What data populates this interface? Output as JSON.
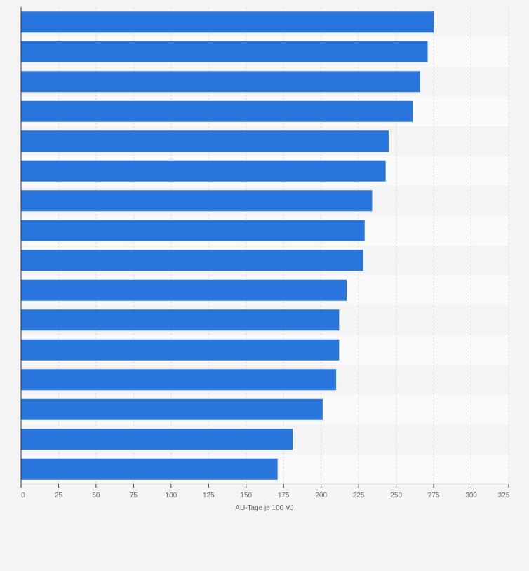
{
  "chart_data": {
    "type": "bar",
    "orientation": "horizontal",
    "title": "",
    "xlabel": "AU-Tage je 100 VJ",
    "ylabel": "",
    "xlim": [
      0,
      325
    ],
    "xticks": [
      0,
      25,
      50,
      75,
      100,
      125,
      150,
      175,
      200,
      225,
      250,
      275,
      300,
      325
    ],
    "categories": [
      "",
      "",
      "",
      "",
      "",
      "",
      "",
      "",
      "",
      "",
      "",
      "",
      "",
      "",
      "",
      ""
    ],
    "values": [
      275,
      271,
      266,
      261,
      245,
      243,
      234,
      229,
      228,
      217,
      212,
      212,
      210,
      201,
      181,
      171
    ],
    "grid": true,
    "legend": "none",
    "bar_color": "#2876dd",
    "band_colors": [
      "#f4f4f4",
      "#fafafa"
    ],
    "grid_color": "#dcdcdc",
    "axis_color": "#333333",
    "tick_label_color": "#666666"
  }
}
